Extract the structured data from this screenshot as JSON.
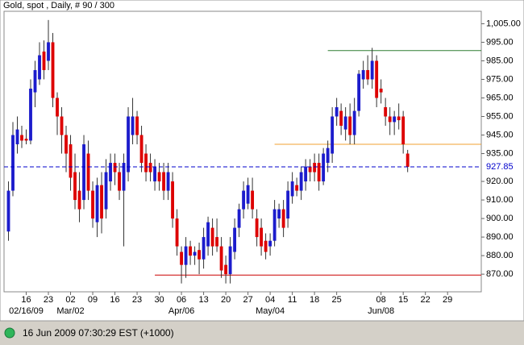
{
  "chart_data": {
    "type": "candlestick",
    "title": "Gold, spot , Daily, # 90 / 300",
    "categories": [
      null,
      null,
      null,
      null,
      "16",
      null,
      null,
      null,
      null,
      "23",
      null,
      null,
      null,
      null,
      "02",
      null,
      null,
      null,
      null,
      "09",
      null,
      null,
      null,
      null,
      "16",
      null,
      null,
      null,
      null,
      "23",
      null,
      null,
      null,
      null,
      "30",
      null,
      null,
      null,
      null,
      "06",
      null,
      null,
      null,
      null,
      "13",
      null,
      null,
      null,
      null,
      "20",
      null,
      null,
      null,
      null,
      "27",
      null,
      null,
      null,
      null,
      "04",
      null,
      null,
      null,
      null,
      "11",
      null,
      null,
      null,
      null,
      "18",
      null,
      null,
      null,
      null,
      "25",
      null,
      null,
      null,
      null,
      null,
      null,
      null,
      null,
      null,
      "08",
      null,
      null,
      null,
      null,
      "15",
      null,
      null,
      null,
      null,
      "22",
      null,
      null,
      null,
      null,
      "29",
      null,
      null,
      null,
      null,
      null,
      null,
      null
    ],
    "major_labels": [
      {
        "index": 4,
        "label": "02/16/09"
      },
      {
        "index": 14,
        "label": "Mar/02"
      },
      {
        "index": 39,
        "label": "Apr/06"
      },
      {
        "index": 59,
        "label": "May/04"
      },
      {
        "index": 84,
        "label": "Jun/08"
      }
    ],
    "open": [
      893,
      915,
      940,
      945,
      943,
      942,
      968,
      975,
      990,
      985,
      995,
      965,
      955,
      945,
      940,
      925,
      915,
      910,
      935,
      915,
      898,
      918,
      905,
      920,
      930,
      925,
      915,
      925,
      945,
      955,
      945,
      935,
      930,
      920,
      925,
      925,
      915,
      920,
      900,
      882,
      875,
      885,
      880,
      883,
      878,
      885,
      895,
      890,
      885,
      875,
      870,
      882,
      895,
      905,
      908,
      915,
      900,
      895,
      888,
      885,
      888,
      900,
      905,
      900,
      912,
      918,
      915,
      920,
      928,
      930,
      930,
      920,
      930,
      935,
      955,
      958,
      948,
      955,
      945,
      958,
      975,
      980,
      975,
      985,
      970,
      960,
      955,
      952,
      955,
      955,
      935,
      null,
      null,
      null,
      null,
      null,
      null,
      null,
      null,
      null,
      null,
      null,
      null,
      null,
      null,
      null,
      null
    ],
    "high": [
      920,
      952,
      955,
      950,
      948,
      975,
      985,
      995,
      996,
      1007,
      1000,
      968,
      960,
      950,
      945,
      935,
      925,
      945,
      942,
      920,
      922,
      925,
      932,
      935,
      935,
      930,
      935,
      960,
      965,
      958,
      950,
      940,
      935,
      932,
      930,
      930,
      930,
      925,
      905,
      885,
      890,
      888,
      885,
      887,
      895,
      901,
      900,
      900,
      890,
      880,
      890,
      900,
      908,
      920,
      922,
      922,
      905,
      900,
      892,
      892,
      910,
      908,
      910,
      920,
      925,
      922,
      928,
      932,
      932,
      935,
      935,
      938,
      942,
      960,
      965,
      962,
      960,
      962,
      965,
      980,
      985,
      988,
      992,
      988,
      975,
      965,
      960,
      958,
      962,
      958,
      937,
      null,
      null,
      null,
      null,
      null,
      null,
      null,
      null,
      null,
      null,
      null,
      null,
      null,
      null,
      null,
      null
    ],
    "low": [
      888,
      912,
      935,
      938,
      940,
      940,
      960,
      972,
      975,
      980,
      960,
      945,
      935,
      925,
      915,
      905,
      898,
      905,
      910,
      895,
      890,
      892,
      900,
      915,
      918,
      910,
      885,
      920,
      940,
      940,
      925,
      920,
      920,
      915,
      915,
      910,
      910,
      895,
      880,
      865,
      868,
      875,
      875,
      870,
      873,
      880,
      880,
      882,
      868,
      865,
      865,
      878,
      890,
      900,
      905,
      900,
      885,
      880,
      878,
      880,
      885,
      895,
      890,
      895,
      908,
      912,
      910,
      915,
      920,
      920,
      915,
      918,
      925,
      930,
      950,
      945,
      942,
      940,
      940,
      955,
      970,
      972,
      970,
      960,
      962,
      950,
      945,
      945,
      948,
      935,
      925,
      null,
      null,
      null,
      null,
      null,
      null,
      null,
      null,
      null,
      null,
      null,
      null,
      null,
      null,
      null,
      null
    ],
    "close": [
      915,
      945,
      948,
      942,
      942,
      970,
      980,
      988,
      980,
      995,
      965,
      955,
      945,
      935,
      922,
      910,
      905,
      940,
      915,
      900,
      918,
      900,
      925,
      930,
      925,
      915,
      930,
      955,
      955,
      945,
      930,
      925,
      925,
      928,
      920,
      915,
      925,
      900,
      885,
      875,
      885,
      880,
      882,
      878,
      890,
      898,
      885,
      885,
      872,
      870,
      885,
      895,
      905,
      915,
      918,
      905,
      890,
      885,
      882,
      888,
      905,
      905,
      895,
      915,
      920,
      915,
      925,
      928,
      925,
      925,
      920,
      935,
      938,
      955,
      960,
      950,
      955,
      945,
      958,
      978,
      980,
      975,
      985,
      965,
      968,
      955,
      952,
      955,
      953,
      940,
      927.85,
      null,
      null,
      null,
      null,
      null,
      null,
      null,
      null,
      null,
      null,
      null,
      null,
      null,
      null,
      null,
      null
    ],
    "up_color": "#1c1ccc",
    "down_color": "#dd0000",
    "xlim": [
      -1,
      106.6
    ],
    "ylim": [
      860.5,
      1011.7
    ],
    "yticks": [
      {
        "value": 1005,
        "label": "1,005.00"
      },
      {
        "value": 995,
        "label": "995.00"
      },
      {
        "value": 985,
        "label": "985.00"
      },
      {
        "value": 975,
        "label": "975.00"
      },
      {
        "value": 965,
        "label": "965.00"
      },
      {
        "value": 955,
        "label": "955.00"
      },
      {
        "value": 945,
        "label": "945.00"
      },
      {
        "value": 935,
        "label": "935.00"
      },
      {
        "value": 920,
        "label": "920.00"
      },
      {
        "value": 910,
        "label": "910.00"
      },
      {
        "value": 900,
        "label": "900.00"
      },
      {
        "value": 890,
        "label": "890.00"
      },
      {
        "value": 880,
        "label": "880.00"
      },
      {
        "value": 870,
        "label": "870.00"
      }
    ],
    "current_price": 927.85,
    "current_color": "#0000cc",
    "levels": [
      {
        "value": 990.5,
        "start": 72,
        "color": "#2e7d32"
      },
      {
        "value": 940,
        "start": 60,
        "color": "#f0a030"
      },
      {
        "value": 869.5,
        "start": 33,
        "color": "#cc0000"
      }
    ],
    "status": "16 Jun 2009 07:30:29  EST (+1000)"
  }
}
